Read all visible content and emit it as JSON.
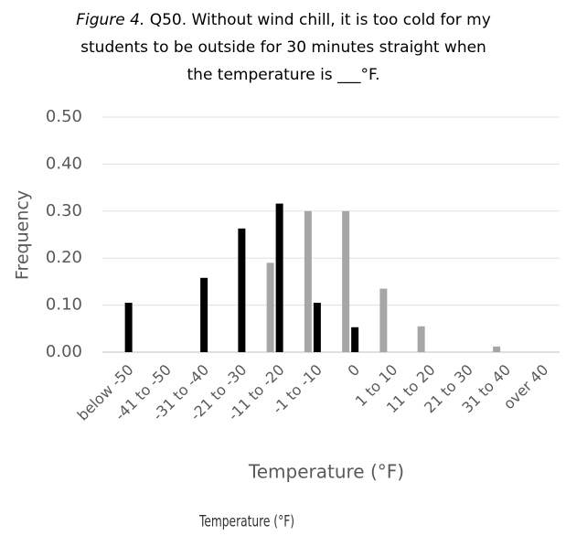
{
  "chart_data": {
    "type": "bar",
    "title_label": "Figure 4.",
    "title": [
      "Q50. Without wind chill, it is too cold for my",
      "students to be outside for 30 minutes straight when",
      "the temperature is ___°F."
    ],
    "x_label": "Temperature (°F)",
    "y_label": "Frequency",
    "annotation": "Temperature (°F)",
    "categories": [
      "below -50",
      "-41 to -50",
      "-31 to -40",
      "-21 to -30",
      "-11 to -20",
      "-1 to -10",
      "0",
      "1 to 10",
      "11 to 20",
      "21 to 30",
      "31 to 40",
      "over 40"
    ],
    "series": [
      {
        "color": "#a6a6a6",
        "values": [
          0,
          0,
          0,
          0,
          0.19,
          0.3,
          0.3,
          0.135,
          0.055,
          0,
          0.012,
          0
        ]
      },
      {
        "color": "#000000",
        "values": [
          0.105,
          0,
          0.158,
          0.263,
          0.316,
          0.105,
          0.053,
          0,
          0,
          0,
          0,
          0
        ]
      }
    ],
    "ylim": [
      0,
      0.5
    ],
    "yticks": [
      {
        "value": 0,
        "label": "0.00"
      },
      {
        "value": 0.1,
        "label": "0.10"
      },
      {
        "value": 0.2,
        "label": "0.20"
      },
      {
        "value": 0.3,
        "label": "0.30"
      },
      {
        "value": 0.4,
        "label": "0.40"
      },
      {
        "value": 0.5,
        "label": "0.50"
      }
    ],
    "grid": true
  }
}
